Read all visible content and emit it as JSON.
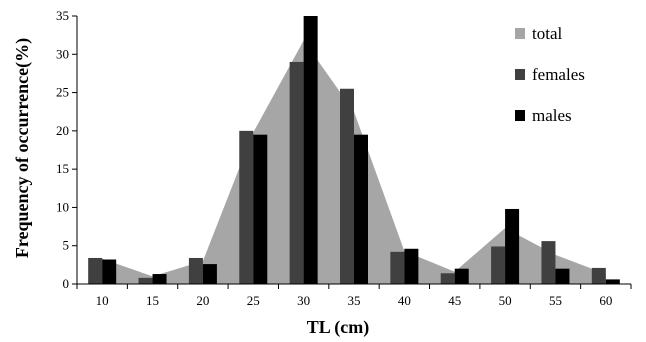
{
  "chart_data": {
    "type": "bar",
    "categories": [
      "10",
      "15",
      "20",
      "25",
      "30",
      "35",
      "40",
      "45",
      "50",
      "55",
      "60"
    ],
    "series": [
      {
        "name": "total",
        "kind": "area",
        "values": [
          3.3,
          1.0,
          3.0,
          19.8,
          31.8,
          22.5,
          4.3,
          1.6,
          7.3,
          3.8,
          1.3
        ],
        "color": "#a6a6a6"
      },
      {
        "name": "females",
        "kind": "bar",
        "values": [
          3.4,
          0.8,
          3.4,
          20.0,
          29.0,
          25.5,
          4.2,
          1.4,
          4.9,
          5.6,
          2.1
        ],
        "color": "#404040"
      },
      {
        "name": "males",
        "kind": "bar",
        "values": [
          3.2,
          1.3,
          2.6,
          19.5,
          35.0,
          19.5,
          4.6,
          2.0,
          9.8,
          2.0,
          0.6
        ],
        "color": "#000000"
      }
    ],
    "xlabel": "TL (cm)",
    "ylabel": "Frequency of occurrence(%)",
    "ylim": [
      0,
      35
    ],
    "yticks": [
      "0",
      "5",
      "10",
      "15",
      "20",
      "25",
      "30",
      "35"
    ],
    "grid": false,
    "legend_position": "top-right"
  }
}
